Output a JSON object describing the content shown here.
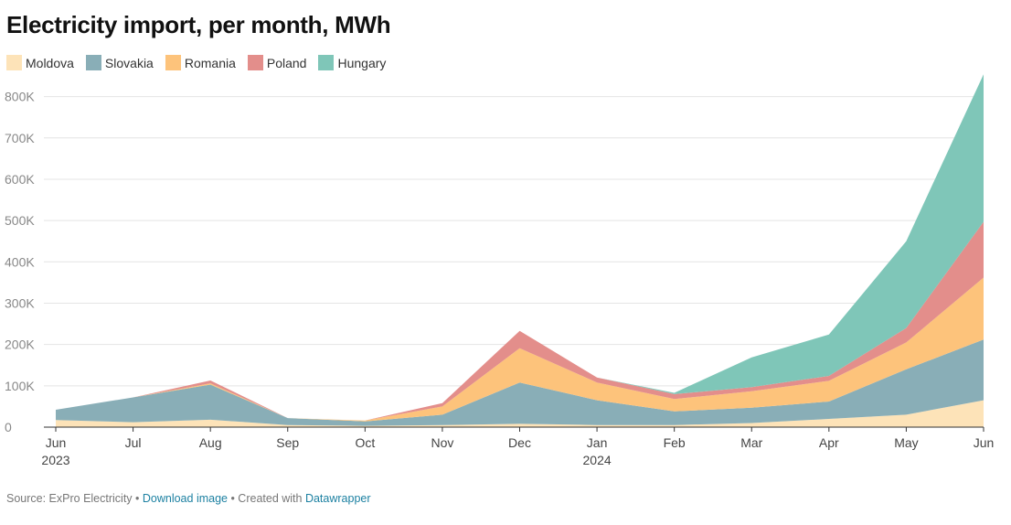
{
  "title": "Electricity import, per month, MWh",
  "legend": [
    {
      "name": "Moldova",
      "color": "#fde3b8"
    },
    {
      "name": "Slovakia",
      "color": "#89aeb7"
    },
    {
      "name": "Romania",
      "color": "#fdc37b"
    },
    {
      "name": "Poland",
      "color": "#e38e8b"
    },
    {
      "name": "Hungary",
      "color": "#7fc6b8"
    }
  ],
  "footer": {
    "source": "Source: ExPro Electricity",
    "sep1": " • ",
    "download": "Download image",
    "sep2": " • Created with ",
    "tool": "Datawrapper"
  },
  "chart_data": {
    "type": "area",
    "stacked": true,
    "categories": [
      "Jun",
      "Jul",
      "Aug",
      "Sep",
      "Oct",
      "Nov",
      "Dec",
      "Jan",
      "Feb",
      "Mar",
      "Apr",
      "May",
      "Jun"
    ],
    "year_labels": [
      "2023",
      "",
      "",
      "",
      "",
      "",
      "",
      "2024",
      "",
      "",
      "",
      "",
      ""
    ],
    "ylim": [
      0,
      850000
    ],
    "yticks": [
      0,
      100000,
      200000,
      300000,
      400000,
      500000,
      600000,
      700000,
      800000
    ],
    "ytick_labels": [
      "0",
      "100K",
      "200K",
      "300K",
      "400K",
      "500K",
      "600K",
      "700K",
      "800K"
    ],
    "grid": true,
    "legend_position": "top-left",
    "series": [
      {
        "name": "Moldova",
        "color": "#fde3b8",
        "values": [
          17000,
          12000,
          18000,
          5000,
          3000,
          5000,
          8000,
          5000,
          5000,
          10000,
          20000,
          30000,
          65000
        ]
      },
      {
        "name": "Slovakia",
        "color": "#89aeb7",
        "values": [
          25000,
          60000,
          85000,
          17000,
          11000,
          25000,
          100000,
          60000,
          33000,
          37000,
          42000,
          110000,
          147000
        ]
      },
      {
        "name": "Romania",
        "color": "#fdc37b",
        "values": [
          0,
          0,
          3000,
          0,
          2000,
          20000,
          83000,
          43000,
          30000,
          40000,
          50000,
          65000,
          150000
        ]
      },
      {
        "name": "Poland",
        "color": "#e38e8b",
        "values": [
          0,
          0,
          7000,
          0,
          0,
          8000,
          42000,
          12000,
          12000,
          10000,
          12000,
          35000,
          135000
        ]
      },
      {
        "name": "Hungary",
        "color": "#7fc6b8",
        "values": [
          0,
          0,
          0,
          0,
          0,
          0,
          0,
          0,
          3000,
          72000,
          100000,
          210000,
          357000
        ]
      }
    ]
  }
}
